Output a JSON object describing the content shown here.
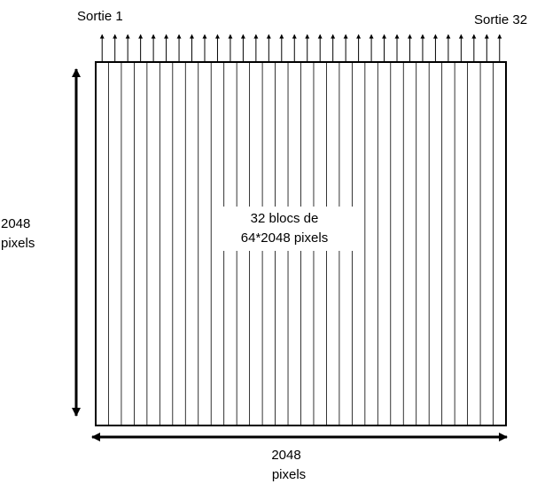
{
  "output_first_label": "Sortie 1",
  "output_last_label": "Sortie 32",
  "block_count": 32,
  "center_label": {
    "line1": "32 blocs de",
    "line2": "64*2048 pixels"
  },
  "left_dimension": {
    "line1": "2048",
    "line2": "pixels"
  },
  "bottom_dimension": {
    "line1": "2048",
    "line2": "pixels"
  },
  "colors": {
    "stroke": "#000000",
    "background": "#ffffff"
  }
}
